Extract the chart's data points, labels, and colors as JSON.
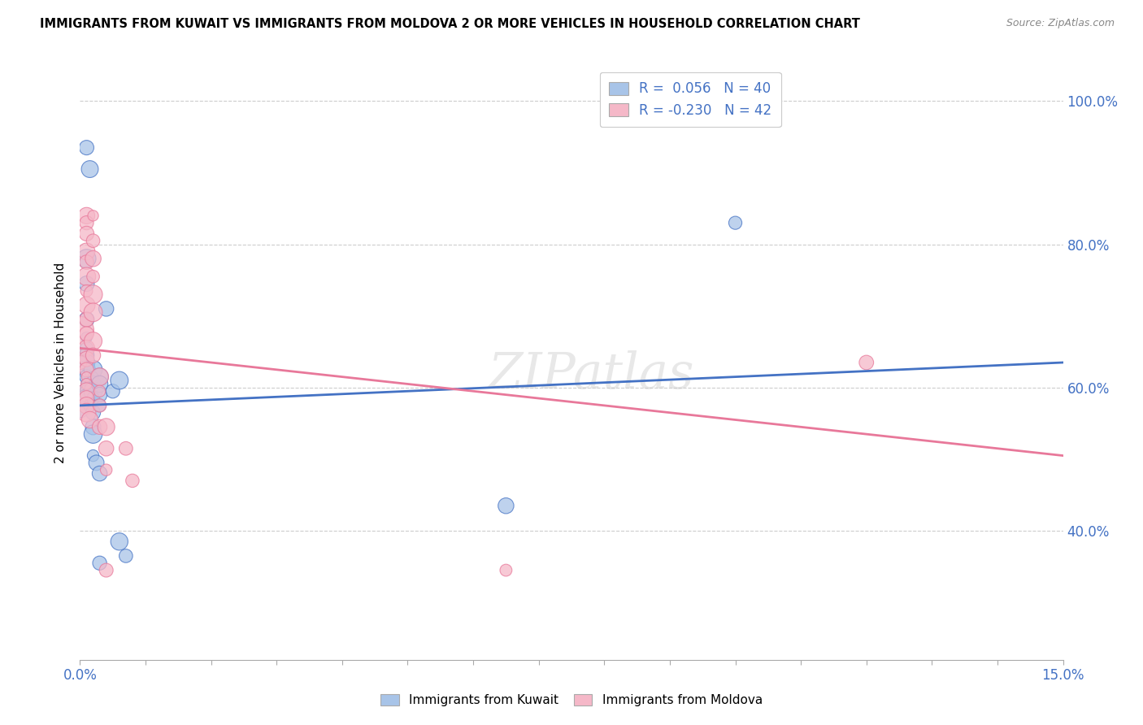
{
  "title": "IMMIGRANTS FROM KUWAIT VS IMMIGRANTS FROM MOLDOVA 2 OR MORE VEHICLES IN HOUSEHOLD CORRELATION CHART",
  "source": "Source: ZipAtlas.com",
  "ylabel": "2 or more Vehicles in Household",
  "xlim": [
    0.0,
    0.15
  ],
  "ylim": [
    0.22,
    1.05
  ],
  "kuwait_R": "0.056",
  "kuwait_N": 40,
  "moldova_R": "-0.230",
  "moldova_N": 42,
  "kuwait_color": "#a8c4e8",
  "moldova_color": "#f5b8c8",
  "kuwait_line_color": "#4472c4",
  "moldova_line_color": "#e8789a",
  "background_color": "#ffffff",
  "grid_color": "#c8c8c8",
  "kuwait_points": [
    [
      0.0,
      0.595
    ],
    [
      0.0,
      0.57
    ],
    [
      0.001,
      0.935
    ],
    [
      0.0015,
      0.905
    ],
    [
      0.001,
      0.78
    ],
    [
      0.001,
      0.745
    ],
    [
      0.001,
      0.695
    ],
    [
      0.001,
      0.67
    ],
    [
      0.001,
      0.655
    ],
    [
      0.001,
      0.645
    ],
    [
      0.001,
      0.635
    ],
    [
      0.001,
      0.625
    ],
    [
      0.001,
      0.615
    ],
    [
      0.001,
      0.605
    ],
    [
      0.001,
      0.595
    ],
    [
      0.001,
      0.585
    ],
    [
      0.0015,
      0.575
    ],
    [
      0.002,
      0.565
    ],
    [
      0.002,
      0.625
    ],
    [
      0.002,
      0.615
    ],
    [
      0.002,
      0.605
    ],
    [
      0.002,
      0.595
    ],
    [
      0.002,
      0.585
    ],
    [
      0.002,
      0.545
    ],
    [
      0.002,
      0.535
    ],
    [
      0.002,
      0.505
    ],
    [
      0.0025,
      0.495
    ],
    [
      0.003,
      0.615
    ],
    [
      0.003,
      0.605
    ],
    [
      0.003,
      0.59
    ],
    [
      0.003,
      0.575
    ],
    [
      0.003,
      0.48
    ],
    [
      0.003,
      0.355
    ],
    [
      0.004,
      0.71
    ],
    [
      0.005,
      0.595
    ],
    [
      0.006,
      0.61
    ],
    [
      0.006,
      0.385
    ],
    [
      0.007,
      0.365
    ],
    [
      0.065,
      0.435
    ],
    [
      0.1,
      0.83
    ]
  ],
  "moldova_points": [
    [
      0.0,
      0.68
    ],
    [
      0.0,
      0.635
    ],
    [
      0.001,
      0.84
    ],
    [
      0.001,
      0.83
    ],
    [
      0.001,
      0.815
    ],
    [
      0.001,
      0.79
    ],
    [
      0.001,
      0.775
    ],
    [
      0.001,
      0.755
    ],
    [
      0.001,
      0.735
    ],
    [
      0.001,
      0.715
    ],
    [
      0.001,
      0.695
    ],
    [
      0.001,
      0.675
    ],
    [
      0.001,
      0.655
    ],
    [
      0.001,
      0.64
    ],
    [
      0.001,
      0.625
    ],
    [
      0.001,
      0.615
    ],
    [
      0.001,
      0.605
    ],
    [
      0.001,
      0.595
    ],
    [
      0.001,
      0.585
    ],
    [
      0.001,
      0.575
    ],
    [
      0.001,
      0.565
    ],
    [
      0.0015,
      0.555
    ],
    [
      0.002,
      0.84
    ],
    [
      0.002,
      0.805
    ],
    [
      0.002,
      0.78
    ],
    [
      0.002,
      0.755
    ],
    [
      0.002,
      0.73
    ],
    [
      0.002,
      0.705
    ],
    [
      0.002,
      0.665
    ],
    [
      0.002,
      0.645
    ],
    [
      0.003,
      0.615
    ],
    [
      0.003,
      0.595
    ],
    [
      0.003,
      0.575
    ],
    [
      0.003,
      0.545
    ],
    [
      0.004,
      0.545
    ],
    [
      0.004,
      0.515
    ],
    [
      0.004,
      0.485
    ],
    [
      0.004,
      0.345
    ],
    [
      0.007,
      0.515
    ],
    [
      0.008,
      0.47
    ],
    [
      0.065,
      0.345
    ],
    [
      0.12,
      0.635
    ]
  ],
  "yticks": [
    0.4,
    0.6,
    0.8,
    1.0
  ],
  "ytick_labels": [
    "40.0%",
    "60.0%",
    "80.0%",
    "100.0%"
  ]
}
